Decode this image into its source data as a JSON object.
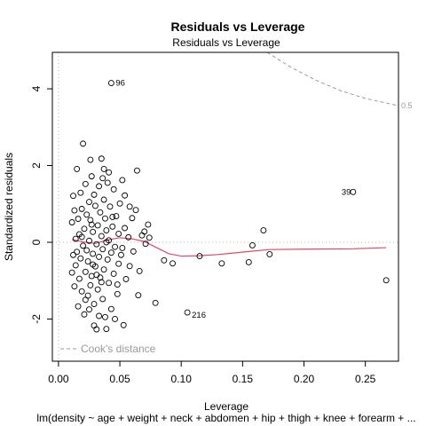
{
  "chart_data": {
    "type": "scatter",
    "title": "Residuals vs Leverage",
    "subtitle": "Residuals vs Leverage",
    "xlabel": "Leverage",
    "ylabel": "Standardized residuals",
    "caption": "lm(density ~ age + weight + neck + abdomen + hip + thigh + knee + forearm + ...",
    "xlim": [
      -0.005,
      0.277
    ],
    "ylim": [
      -3.1,
      4.95
    ],
    "x_ticks": [
      0.0,
      0.05,
      0.1,
      0.15,
      0.2,
      0.25
    ],
    "x_tick_labels": [
      "0.00",
      "0.05",
      "0.10",
      "0.15",
      "0.20",
      "0.25"
    ],
    "y_ticks": [
      -2,
      0,
      2,
      4
    ],
    "y_tick_labels": [
      "-2",
      "0",
      "2",
      "4"
    ],
    "grid": false,
    "legend": {
      "position": "bottom-left",
      "entries": [
        "Cook's distance"
      ]
    },
    "labeled_points": [
      {
        "label": "96",
        "x": 0.043,
        "y": 4.15
      },
      {
        "label": "39",
        "x": 0.24,
        "y": 1.31
      },
      {
        "label": "216",
        "x": 0.105,
        "y": -1.83
      }
    ],
    "cooks_label": "0.5",
    "cooks_contour": {
      "x": [
        0.17,
        0.19,
        0.21,
        0.23,
        0.25,
        0.277
      ],
      "y": [
        4.95,
        4.55,
        4.22,
        3.95,
        3.75,
        3.56
      ]
    },
    "points": [
      {
        "x": 0.267,
        "y": -0.99
      },
      {
        "x": 0.172,
        "y": -0.31
      },
      {
        "x": 0.167,
        "y": 0.31
      },
      {
        "x": 0.158,
        "y": -0.08
      },
      {
        "x": 0.155,
        "y": -0.52
      },
      {
        "x": 0.133,
        "y": -0.55
      },
      {
        "x": 0.115,
        "y": -0.36
      },
      {
        "x": 0.093,
        "y": -0.55
      },
      {
        "x": 0.086,
        "y": -0.47
      },
      {
        "x": 0.079,
        "y": -1.58
      },
      {
        "x": 0.074,
        "y": 0.12
      },
      {
        "x": 0.073,
        "y": 0.46
      },
      {
        "x": 0.071,
        "y": -0.04
      },
      {
        "x": 0.07,
        "y": 0.28
      },
      {
        "x": 0.068,
        "y": 0.18
      },
      {
        "x": 0.065,
        "y": -1.38
      },
      {
        "x": 0.066,
        "y": -0.75
      },
      {
        "x": 0.064,
        "y": 1.87
      },
      {
        "x": 0.063,
        "y": 0.84
      },
      {
        "x": 0.061,
        "y": -0.24
      },
      {
        "x": 0.06,
        "y": 0.63
      },
      {
        "x": 0.058,
        "y": -0.62
      },
      {
        "x": 0.057,
        "y": 0.13
      },
      {
        "x": 0.055,
        "y": -0.96
      },
      {
        "x": 0.054,
        "y": 0.37
      },
      {
        "x": 0.053,
        "y": -2.16
      },
      {
        "x": 0.052,
        "y": 1.62
      },
      {
        "x": 0.051,
        "y": -0.33
      },
      {
        "x": 0.05,
        "y": 1.01
      },
      {
        "x": 0.049,
        "y": -0.56
      },
      {
        "x": 0.049,
        "y": 0.22
      },
      {
        "x": 0.048,
        "y": -1.35
      },
      {
        "x": 0.047,
        "y": 0.68
      },
      {
        "x": 0.046,
        "y": -0.12
      },
      {
        "x": 0.045,
        "y": 1.38
      },
      {
        "x": 0.045,
        "y": -0.82
      },
      {
        "x": 0.044,
        "y": 0.41
      },
      {
        "x": 0.043,
        "y": -1.74
      },
      {
        "x": 0.043,
        "y": -0.27
      },
      {
        "x": 0.042,
        "y": 0.93
      },
      {
        "x": 0.041,
        "y": 0.05
      },
      {
        "x": 0.041,
        "y": -1.06
      },
      {
        "x": 0.04,
        "y": 1.55
      },
      {
        "x": 0.04,
        "y": -0.45
      },
      {
        "x": 0.039,
        "y": 0.31
      },
      {
        "x": 0.039,
        "y": -2.26
      },
      {
        "x": 0.038,
        "y": -1.95
      },
      {
        "x": 0.038,
        "y": 0.62
      },
      {
        "x": 0.037,
        "y": -0.71
      },
      {
        "x": 0.037,
        "y": 1.11
      },
      {
        "x": 0.036,
        "y": -0.18
      },
      {
        "x": 0.036,
        "y": -1.48
      },
      {
        "x": 0.035,
        "y": 2.18
      },
      {
        "x": 0.035,
        "y": 0.16
      },
      {
        "x": 0.034,
        "y": -0.92
      },
      {
        "x": 0.034,
        "y": 0.78
      },
      {
        "x": 0.033,
        "y": -0.38
      },
      {
        "x": 0.033,
        "y": 1.46
      },
      {
        "x": 0.032,
        "y": -1.23
      },
      {
        "x": 0.032,
        "y": 0.44
      },
      {
        "x": 0.031,
        "y": -0.05
      },
      {
        "x": 0.031,
        "y": -2.27
      },
      {
        "x": 0.03,
        "y": 0.95
      },
      {
        "x": 0.03,
        "y": -0.63
      },
      {
        "x": 0.029,
        "y": 1.24
      },
      {
        "x": 0.029,
        "y": -1.61
      },
      {
        "x": 0.028,
        "y": 0.27
      },
      {
        "x": 0.028,
        "y": -0.3
      },
      {
        "x": 0.027,
        "y": 1.72
      },
      {
        "x": 0.027,
        "y": -0.88
      },
      {
        "x": 0.026,
        "y": 0.58
      },
      {
        "x": 0.026,
        "y": -1.12
      },
      {
        "x": 0.025,
        "y": 0.04
      },
      {
        "x": 0.025,
        "y": 1.05
      },
      {
        "x": 0.024,
        "y": -0.5
      },
      {
        "x": 0.024,
        "y": -1.39
      },
      {
        "x": 0.023,
        "y": 0.72
      },
      {
        "x": 0.023,
        "y": -0.21
      },
      {
        "x": 0.022,
        "y": 1.52
      },
      {
        "x": 0.022,
        "y": -0.77
      },
      {
        "x": 0.021,
        "y": 0.35
      },
      {
        "x": 0.021,
        "y": -1.88
      },
      {
        "x": 0.02,
        "y": 2.57
      },
      {
        "x": 0.02,
        "y": -0.09
      },
      {
        "x": 0.019,
        "y": 0.87
      },
      {
        "x": 0.019,
        "y": -1.28
      },
      {
        "x": 0.018,
        "y": 1.29
      },
      {
        "x": 0.018,
        "y": -0.42
      },
      {
        "x": 0.017,
        "y": 0.21
      },
      {
        "x": 0.017,
        "y": -0.95
      },
      {
        "x": 0.016,
        "y": 0.61
      },
      {
        "x": 0.016,
        "y": -1.67
      },
      {
        "x": 0.015,
        "y": 1.91
      },
      {
        "x": 0.015,
        "y": -0.25
      },
      {
        "x": 0.014,
        "y": 0.09
      },
      {
        "x": 0.014,
        "y": -0.6
      },
      {
        "x": 0.013,
        "y": 0.83
      },
      {
        "x": 0.013,
        "y": -1.15
      },
      {
        "x": 0.012,
        "y": 1.21
      },
      {
        "x": 0.012,
        "y": -0.33
      },
      {
        "x": 0.011,
        "y": 0.52
      },
      {
        "x": 0.011,
        "y": -0.79
      },
      {
        "x": 0.046,
        "y": -2.0
      },
      {
        "x": 0.033,
        "y": -1.92
      },
      {
        "x": 0.041,
        "y": 1.82
      },
      {
        "x": 0.026,
        "y": 2.15
      },
      {
        "x": 0.037,
        "y": 1.91
      },
      {
        "x": 0.029,
        "y": -2.17
      },
      {
        "x": 0.022,
        "y": -1.5
      },
      {
        "x": 0.054,
        "y": 1.22
      },
      {
        "x": 0.048,
        "y": -1.1
      },
      {
        "x": 0.039,
        "y": 0.0
      },
      {
        "x": 0.027,
        "y": 0.46
      },
      {
        "x": 0.031,
        "y": -0.85
      },
      {
        "x": 0.044,
        "y": 0.66
      },
      {
        "x": 0.035,
        "y": -1.04
      },
      {
        "x": 0.019,
        "y": 0.14
      },
      {
        "x": 0.025,
        "y": -1.75
      },
      {
        "x": 0.058,
        "y": 0.93
      },
      {
        "x": 0.052,
        "y": -0.15
      },
      {
        "x": 0.036,
        "y": 1.67
      },
      {
        "x": 0.028,
        "y": -0.58
      }
    ],
    "smooth_line": {
      "color": "#e0476e",
      "x": [
        0.011,
        0.02,
        0.03,
        0.04,
        0.05,
        0.06,
        0.07,
        0.08,
        0.09,
        0.1,
        0.115,
        0.13,
        0.155,
        0.172,
        0.2,
        0.24,
        0.267
      ],
      "y": [
        0.07,
        0.01,
        -0.03,
        0.06,
        0.12,
        0.09,
        0.02,
        -0.14,
        -0.3,
        -0.36,
        -0.35,
        -0.32,
        -0.24,
        -0.19,
        -0.18,
        -0.17,
        -0.14
      ]
    }
  }
}
